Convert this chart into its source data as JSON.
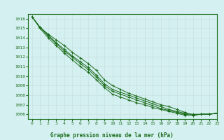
{
  "title": "Graphe pression niveau de la mer (hPa)",
  "bg_color": "#d4f0f0",
  "line_color": "#1a6b1a",
  "grid_color": "#c8e0e0",
  "xlim": [
    -0.5,
    23
  ],
  "ylim": [
    1005.5,
    1016.5
  ],
  "xticks": [
    0,
    1,
    2,
    3,
    4,
    5,
    6,
    7,
    8,
    9,
    10,
    11,
    12,
    13,
    14,
    15,
    16,
    17,
    18,
    19,
    20,
    21,
    22,
    23
  ],
  "yticks": [
    1006,
    1007,
    1008,
    1009,
    1010,
    1011,
    1012,
    1013,
    1014,
    1015,
    1016
  ],
  "series": [
    [
      1016.2,
      1015.1,
      1014.4,
      1013.8,
      1013.2,
      1012.5,
      1011.9,
      1011.3,
      1010.6,
      1009.6,
      1009.0,
      1008.6,
      1008.2,
      1007.9,
      1007.6,
      1007.3,
      1007.0,
      1006.8,
      1006.5,
      1006.2,
      1005.9,
      1006.0,
      1006.0,
      1006.1
    ],
    [
      1016.2,
      1015.1,
      1014.3,
      1013.5,
      1012.8,
      1012.1,
      1011.5,
      1010.9,
      1010.1,
      1009.2,
      1008.6,
      1008.3,
      1008.0,
      1007.7,
      1007.4,
      1007.1,
      1006.8,
      1006.5,
      1006.3,
      1006.1,
      1006.0,
      1006.0,
      1006.0,
      1006.1
    ],
    [
      1016.2,
      1015.1,
      1014.2,
      1013.4,
      1012.6,
      1012.0,
      1011.3,
      1010.7,
      1009.9,
      1009.0,
      1008.4,
      1008.1,
      1007.8,
      1007.5,
      1007.2,
      1006.9,
      1006.6,
      1006.4,
      1006.2,
      1006.0,
      1005.9,
      1006.0,
      1006.0,
      1006.1
    ],
    [
      1016.2,
      1015.0,
      1014.0,
      1013.2,
      1012.4,
      1011.7,
      1011.0,
      1010.4,
      1009.6,
      1008.8,
      1008.1,
      1007.8,
      1007.5,
      1007.2,
      1007.0,
      1006.7,
      1006.5,
      1006.3,
      1006.1,
      1005.9,
      1005.9,
      1006.0,
      1006.0,
      1006.1
    ]
  ]
}
